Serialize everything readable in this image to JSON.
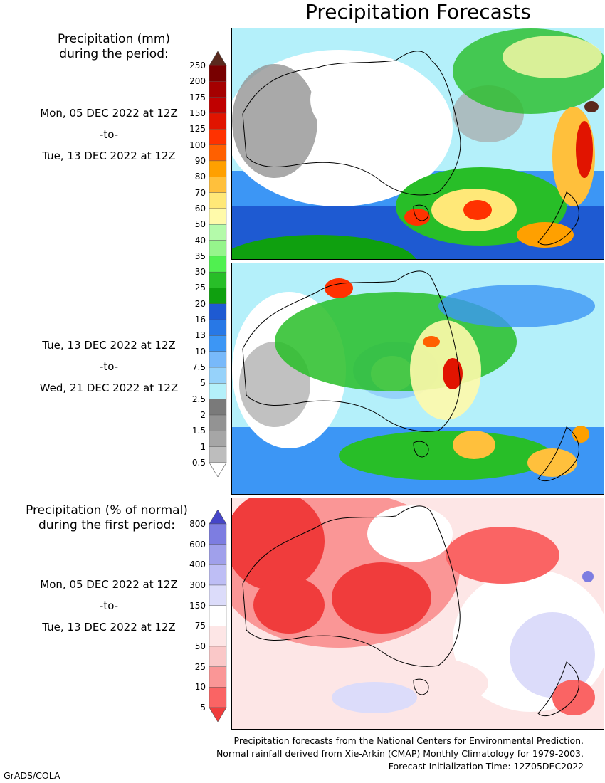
{
  "title": "Precipitation Forecasts",
  "amount_legend": {
    "header": [
      "Precipitation (mm)",
      "during the period:"
    ],
    "levels": [
      "0.5",
      "1",
      "1.5",
      "2",
      "2.5",
      "5",
      "7.5",
      "10",
      "13",
      "16",
      "20",
      "25",
      "30",
      "35",
      "40",
      "50",
      "60",
      "70",
      "80",
      "90",
      "100",
      "125",
      "150",
      "175",
      "200",
      "250"
    ],
    "colors": [
      "#ffffff",
      "#bdbdbd",
      "#a6a6a6",
      "#939393",
      "#7a7a7a",
      "#b4f0fa",
      "#96d2fa",
      "#78b9fa",
      "#3c96f5",
      "#2878e6",
      "#1e5ad2",
      "#0fa00f",
      "#28be28",
      "#50f050",
      "#96f58c",
      "#b4faaa",
      "#fffaaa",
      "#ffe878",
      "#ffc03c",
      "#ffa000",
      "#ff6000",
      "#ff3200",
      "#e11400",
      "#c00000",
      "#a50000",
      "#780000",
      "#5a2a1e"
    ]
  },
  "period1": {
    "start": "Mon, 05 DEC 2022 at 12Z",
    "sep": "-to-",
    "end": "Tue, 13 DEC 2022 at 12Z"
  },
  "period2": {
    "start": "Tue, 13 DEC 2022 at 12Z",
    "sep": "-to-",
    "end": "Wed, 21 DEC 2022 at 12Z"
  },
  "anomaly_legend": {
    "header": [
      "Precipitation (% of normal)",
      "during the first period:"
    ],
    "levels": [
      "5",
      "10",
      "25",
      "50",
      "75",
      "150",
      "300",
      "400",
      "600",
      "800"
    ],
    "colors": [
      "#f03c3c",
      "#fa6464",
      "#fa9696",
      "#fac8c8",
      "#fde6e6",
      "#ffffff",
      "#dcdcfa",
      "#bebef5",
      "#a0a0eb",
      "#7d7de1",
      "#4646c8"
    ]
  },
  "period3": {
    "start": "Mon, 05 DEC 2022 at 12Z",
    "sep": "-to-",
    "end": "Tue, 13 DEC 2022 at 12Z"
  },
  "footer": [
    "Precipitation forecasts from the National Centers for Environmental Prediction.",
    "Normal rainfall derived from Xie-Arkin (CMAP) Monthly Climatology for 1979-2003.",
    "Forecast Initialization Time: 12Z05DEC2022"
  ],
  "credit": "GrADS/COLA"
}
